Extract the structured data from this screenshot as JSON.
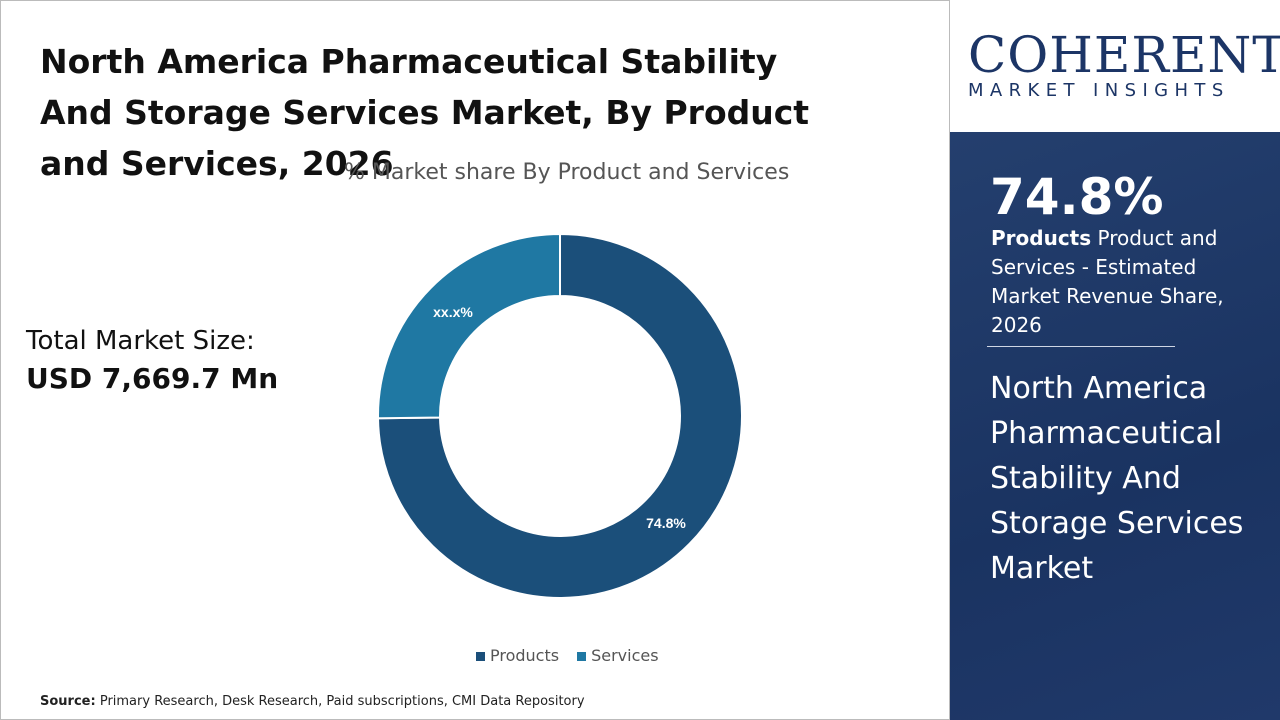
{
  "title": "North America Pharmaceutical Stability And Storage Services Market, By Product and Services, 2026",
  "total_market": {
    "label": "Total Market Size:",
    "value": "USD 7,669.7 Mn"
  },
  "source": {
    "label": "Source:",
    "text": "Primary Research, Desk Research, Paid subscriptions, CMI Data Repository"
  },
  "logo": {
    "name": "COHERENT",
    "tagline": "MARKET INSIGHTS"
  },
  "sidebar": {
    "kpi": "74.8%",
    "kpi_bold": "Products",
    "kpi_text": "Product and Services - Estimated Market Revenue Share, 2026",
    "market_name": "North America Pharmaceutical Stability And Storage Services Market"
  },
  "chart_data": {
    "type": "pie",
    "donut": true,
    "title": "% Market share By Product and Services",
    "categories": [
      "Products",
      "Services"
    ],
    "values": [
      74.8,
      25.2
    ],
    "data_labels": [
      "74.8%",
      "xx.x%"
    ],
    "colors": [
      "#1b4f7a",
      "#1f78a3"
    ],
    "legend_position": "bottom"
  }
}
